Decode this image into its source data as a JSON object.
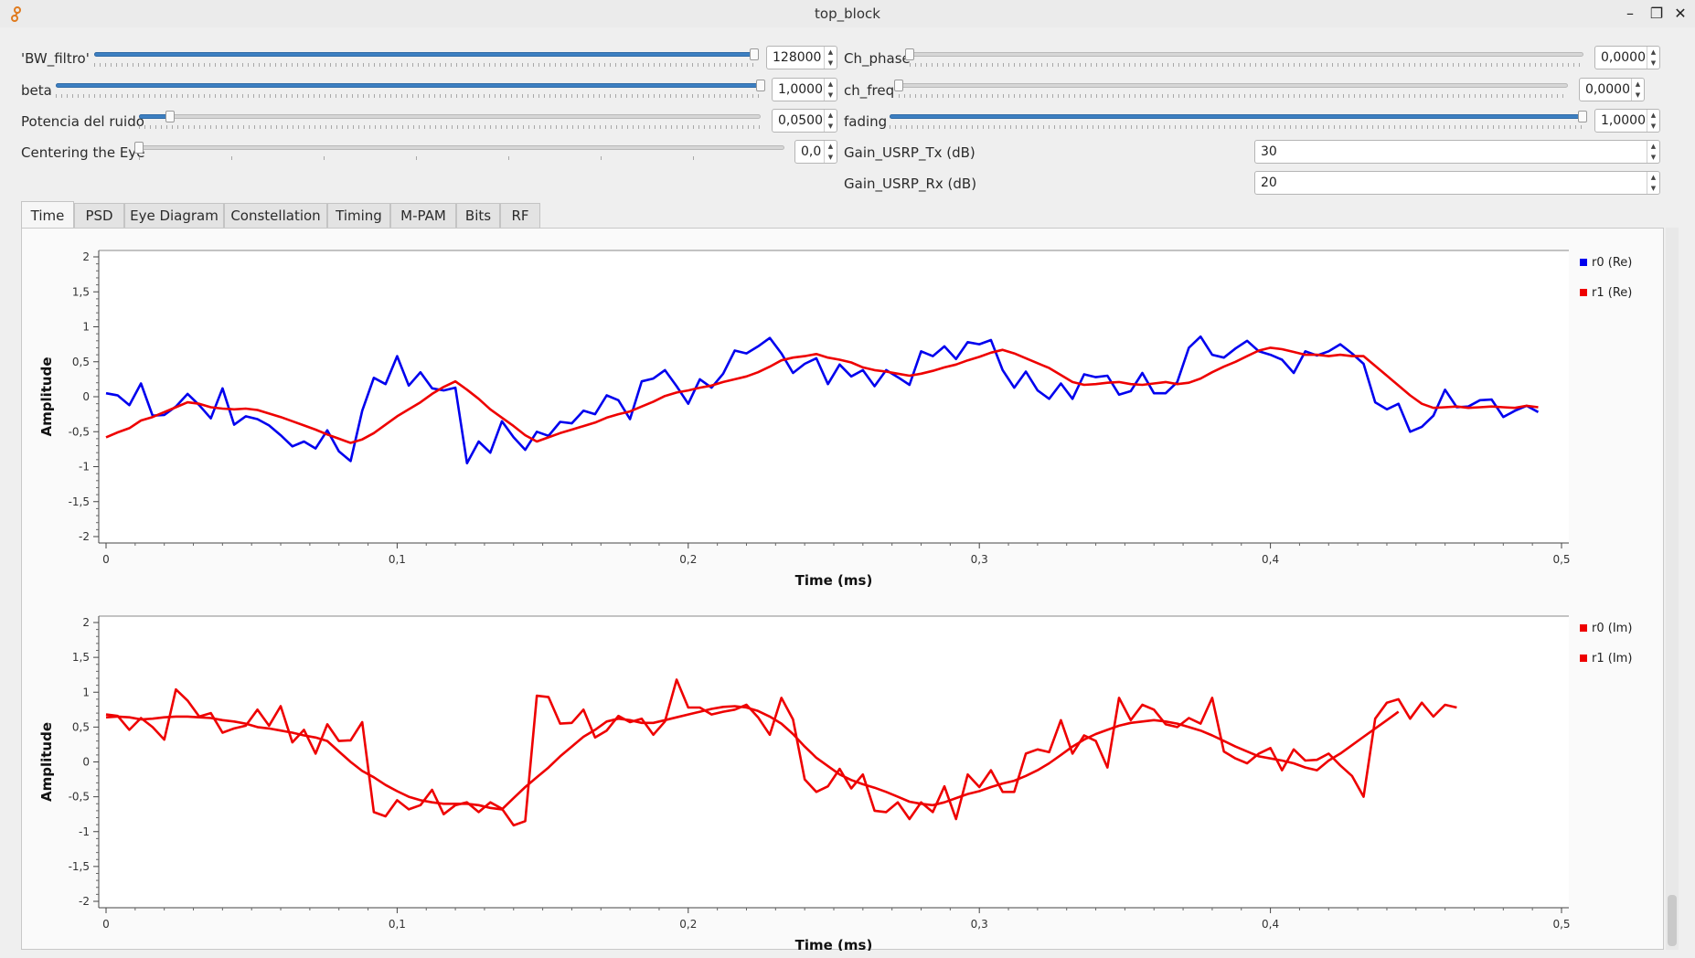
{
  "window": {
    "title": "top_block",
    "buttons": [
      "–",
      "❐",
      "✕"
    ]
  },
  "controls": {
    "bw_filtro": {
      "label": "'BW_filtro'",
      "value": "128000",
      "level": 1.0
    },
    "beta": {
      "label": "beta",
      "value": "1,0000",
      "level": 1.0
    },
    "potencia": {
      "label": "Potencia del ruido",
      "value": "0,0500",
      "level": 0.05
    },
    "centering": {
      "label": "Centering the Eye",
      "value": "0,0",
      "level": 0.0
    },
    "ch_phase": {
      "label": "Ch_phase",
      "value": "0,0000",
      "level": 0.0
    },
    "ch_freq": {
      "label": "ch_freq",
      "value": "0,0000",
      "level": 0.0
    },
    "fading": {
      "label": "fading",
      "value": "1,0000",
      "level": 1.0
    },
    "gain_tx": {
      "label": "Gain_USRP_Tx (dB)",
      "value": "30"
    },
    "gain_rx": {
      "label": "Gain_USRP_Rx (dB)",
      "value": "20"
    }
  },
  "tabs": [
    "Time",
    "PSD",
    "Eye Diagram",
    "Constellation",
    "Timing",
    "M-PAM",
    "Bits",
    "RF"
  ],
  "active_tab": "Time",
  "chart_data": [
    {
      "type": "line",
      "xlabel": "Time (ms)",
      "ylabel": "Amplitude",
      "xlim": [
        0,
        0.5
      ],
      "ylim": [
        -2,
        2
      ],
      "xticks": [
        "0",
        "0,1",
        "0,2",
        "0,3",
        "0,4",
        "0,5"
      ],
      "yticks": [
        "2",
        "1,5",
        "1",
        "0,5",
        "0",
        "-0,5",
        "-1",
        "-1,5",
        "-2"
      ],
      "legend": "top-right",
      "series": [
        {
          "name": "r0 (Re)",
          "color": "#0000ee",
          "x_step": 0.004,
          "values": [
            0.05,
            0.02,
            -0.12,
            0.19,
            -0.27,
            -0.26,
            -0.14,
            0.04,
            -0.12,
            -0.31,
            0.12,
            -0.4,
            -0.28,
            -0.32,
            -0.41,
            -0.55,
            -0.71,
            -0.64,
            -0.74,
            -0.48,
            -0.78,
            -0.92,
            -0.2,
            0.27,
            0.18,
            0.58,
            0.16,
            0.35,
            0.12,
            0.09,
            0.13,
            -0.95,
            -0.64,
            -0.8,
            -0.35,
            -0.58,
            -0.76,
            -0.5,
            -0.56,
            -0.36,
            -0.38,
            -0.2,
            -0.25,
            0.02,
            -0.05,
            -0.32,
            0.22,
            0.26,
            0.38,
            0.15,
            -0.1,
            0.25,
            0.13,
            0.33,
            0.66,
            0.62,
            0.72,
            0.84,
            0.62,
            0.34,
            0.47,
            0.55,
            0.18,
            0.46,
            0.29,
            0.38,
            0.15,
            0.38,
            0.28,
            0.17,
            0.65,
            0.58,
            0.72,
            0.54,
            0.78,
            0.75,
            0.81,
            0.38,
            0.13,
            0.36,
            0.09,
            -0.03,
            0.19,
            -0.03,
            0.32,
            0.28,
            0.3,
            0.03,
            0.08,
            0.34,
            0.05,
            0.05,
            0.21,
            0.7,
            0.86,
            0.6,
            0.56,
            0.69,
            0.8,
            0.65,
            0.6,
            0.53,
            0.34,
            0.65,
            0.59,
            0.65,
            0.75,
            0.62,
            0.47,
            -0.08,
            -0.18,
            -0.1,
            -0.5,
            -0.43,
            -0.27,
            0.1,
            -0.15,
            -0.14,
            -0.05,
            -0.04,
            -0.29,
            -0.2,
            -0.13,
            -0.22
          ]
        },
        {
          "name": "r1 (Re)",
          "color": "#ee0000",
          "x_step": 0.004,
          "values": [
            -0.58,
            -0.51,
            -0.45,
            -0.34,
            -0.29,
            -0.22,
            -0.15,
            -0.08,
            -0.1,
            -0.15,
            -0.17,
            -0.18,
            -0.17,
            -0.19,
            -0.24,
            -0.29,
            -0.35,
            -0.41,
            -0.47,
            -0.54,
            -0.6,
            -0.66,
            -0.61,
            -0.52,
            -0.4,
            -0.28,
            -0.18,
            -0.08,
            0.04,
            0.14,
            0.22,
            0.1,
            -0.03,
            -0.18,
            -0.3,
            -0.42,
            -0.55,
            -0.64,
            -0.58,
            -0.52,
            -0.47,
            -0.42,
            -0.37,
            -0.3,
            -0.25,
            -0.21,
            -0.14,
            -0.07,
            0.01,
            0.06,
            0.09,
            0.13,
            0.16,
            0.21,
            0.25,
            0.29,
            0.35,
            0.43,
            0.52,
            0.56,
            0.58,
            0.61,
            0.56,
            0.53,
            0.49,
            0.42,
            0.38,
            0.36,
            0.33,
            0.3,
            0.33,
            0.37,
            0.42,
            0.46,
            0.52,
            0.57,
            0.63,
            0.67,
            0.62,
            0.55,
            0.48,
            0.41,
            0.31,
            0.21,
            0.17,
            0.18,
            0.2,
            0.21,
            0.18,
            0.17,
            0.19,
            0.21,
            0.18,
            0.2,
            0.26,
            0.35,
            0.43,
            0.5,
            0.58,
            0.66,
            0.7,
            0.68,
            0.64,
            0.6,
            0.6,
            0.58,
            0.6,
            0.58,
            0.58,
            0.44,
            0.3,
            0.16,
            0.02,
            -0.1,
            -0.16,
            -0.15,
            -0.14,
            -0.16,
            -0.15,
            -0.14,
            -0.15,
            -0.16,
            -0.13,
            -0.15
          ]
        }
      ]
    },
    {
      "type": "line",
      "xlabel": "Time (ms)",
      "ylabel": "Amplitude",
      "xlim": [
        0,
        0.5
      ],
      "ylim": [
        -2,
        2
      ],
      "xticks": [
        "0",
        "0,1",
        "0,2",
        "0,3",
        "0,4",
        "0,5"
      ],
      "yticks": [
        "2",
        "1,5",
        "1",
        "0,5",
        "0",
        "-0,5",
        "-1",
        "-1,5",
        "-2"
      ],
      "legend": "top-right",
      "series": [
        {
          "name": "r0 (Im)",
          "color": "#ee0000",
          "x_step": 0.004,
          "values": [
            0.68,
            0.66,
            0.46,
            0.63,
            0.5,
            0.32,
            1.04,
            0.88,
            0.65,
            0.7,
            0.42,
            0.48,
            0.52,
            0.75,
            0.52,
            0.8,
            0.28,
            0.46,
            0.12,
            0.54,
            0.3,
            0.31,
            0.57,
            -0.72,
            -0.78,
            -0.55,
            -0.68,
            -0.62,
            -0.4,
            -0.75,
            -0.62,
            -0.58,
            -0.72,
            -0.58,
            -0.67,
            -0.91,
            -0.85,
            0.95,
            0.93,
            0.55,
            0.56,
            0.75,
            0.35,
            0.45,
            0.66,
            0.57,
            0.62,
            0.39,
            0.58,
            1.18,
            0.78,
            0.78,
            0.68,
            0.72,
            0.75,
            0.82,
            0.64,
            0.39,
            0.92,
            0.61,
            -0.25,
            -0.43,
            -0.35,
            -0.1,
            -0.38,
            -0.18,
            -0.7,
            -0.72,
            -0.58,
            -0.82,
            -0.58,
            -0.72,
            -0.35,
            -0.82,
            -0.18,
            -0.36,
            -0.12,
            -0.43,
            -0.43,
            0.12,
            0.18,
            0.14,
            0.6,
            0.12,
            0.38,
            0.3,
            -0.08,
            0.92,
            0.6,
            0.82,
            0.75,
            0.54,
            0.5,
            0.63,
            0.55,
            0.92,
            0.15,
            0.05,
            -0.02,
            0.12,
            0.2,
            -0.12,
            0.18,
            0.02,
            0.03,
            0.12,
            -0.05,
            -0.2,
            -0.5,
            0.62,
            0.85,
            0.9,
            0.62,
            0.85,
            0.65,
            0.82,
            0.78
          ]
        },
        {
          "name": "r1 (Im)",
          "color": "#ee0000",
          "x_step": 0.004,
          "values": [
            0.64,
            0.65,
            0.64,
            0.61,
            0.62,
            0.64,
            0.65,
            0.65,
            0.64,
            0.63,
            0.6,
            0.58,
            0.55,
            0.5,
            0.48,
            0.45,
            0.42,
            0.38,
            0.35,
            0.3,
            0.15,
            0.0,
            -0.13,
            -0.22,
            -0.33,
            -0.42,
            -0.5,
            -0.55,
            -0.58,
            -0.6,
            -0.6,
            -0.6,
            -0.62,
            -0.66,
            -0.68,
            -0.52,
            -0.36,
            -0.22,
            -0.08,
            0.08,
            0.22,
            0.36,
            0.46,
            0.58,
            0.62,
            0.6,
            0.56,
            0.56,
            0.6,
            0.64,
            0.68,
            0.72,
            0.76,
            0.79,
            0.8,
            0.78,
            0.73,
            0.65,
            0.55,
            0.4,
            0.22,
            0.06,
            -0.06,
            -0.18,
            -0.26,
            -0.32,
            -0.37,
            -0.43,
            -0.5,
            -0.57,
            -0.6,
            -0.62,
            -0.58,
            -0.52,
            -0.46,
            -0.42,
            -0.36,
            -0.31,
            -0.27,
            -0.2,
            -0.12,
            -0.02,
            0.1,
            0.22,
            0.32,
            0.4,
            0.46,
            0.52,
            0.56,
            0.58,
            0.6,
            0.58,
            0.55,
            0.5,
            0.45,
            0.38,
            0.3,
            0.22,
            0.15,
            0.08,
            0.05,
            0.02,
            -0.02,
            -0.08,
            -0.12,
            0.02,
            0.12,
            0.24,
            0.36,
            0.48,
            0.6,
            0.72
          ]
        }
      ]
    }
  ]
}
